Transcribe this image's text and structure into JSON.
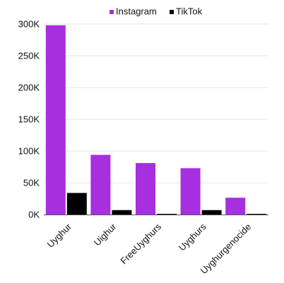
{
  "chart_data": {
    "type": "bar",
    "categories": [
      "Uyghur",
      "Uighur",
      "FreeUyghurs",
      "Uyghurs",
      "Uyghurgenocide"
    ],
    "series": [
      {
        "name": "Instagram",
        "color": "#a62fe0",
        "values": [
          298000,
          94000,
          81000,
          73000,
          26500
        ]
      },
      {
        "name": "TikTok",
        "color": "#000000",
        "values": [
          34000,
          7000,
          1000,
          7000,
          800
        ]
      }
    ],
    "ylim": [
      0,
      300000
    ],
    "yticks": [
      0,
      50000,
      100000,
      150000,
      200000,
      250000,
      300000
    ],
    "ytick_labels": [
      "0K",
      "50K",
      "100K",
      "150K",
      "200K",
      "250K",
      "300K"
    ],
    "grid": true,
    "legend_position": "top-center",
    "title": "",
    "xlabel": "",
    "ylabel": ""
  }
}
